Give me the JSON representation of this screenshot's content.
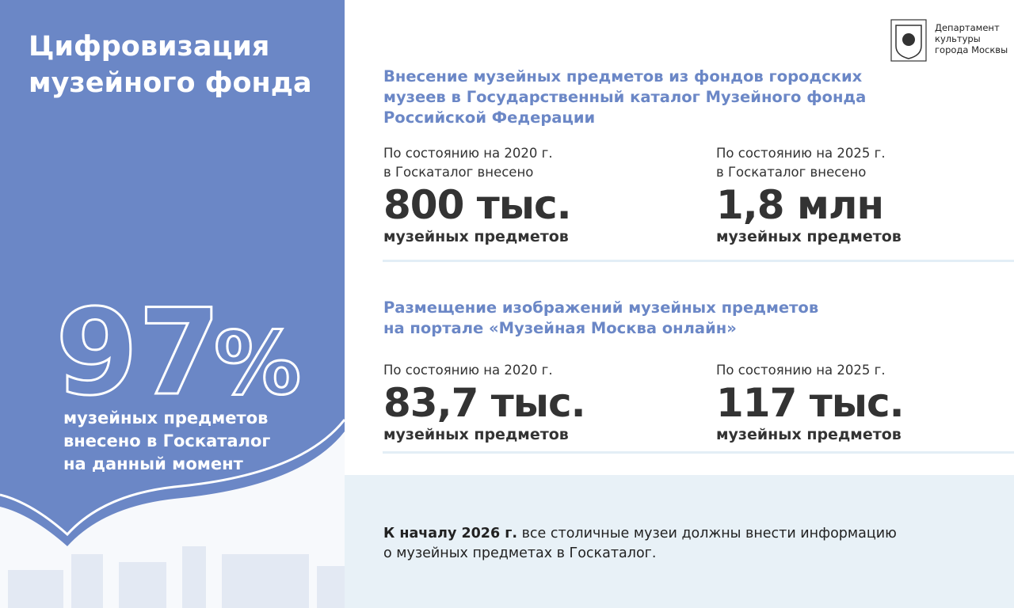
{
  "left": {
    "title": [
      "Цифровизация",
      "музейного фонда"
    ],
    "big_stat": {
      "number": "97",
      "unit": "%"
    },
    "caption": [
      "музейных предметов",
      "внесено в Госкаталог",
      "на данный момент"
    ]
  },
  "logo": {
    "text": [
      "Департамент",
      "культуры",
      "города Москвы"
    ]
  },
  "sections": [
    {
      "heading": [
        "Внесение музейных предметов из фондов городских",
        "музеев в Государственный каталог Музейного фонда",
        "Российской Федерации"
      ],
      "stats": [
        {
          "label": [
            "По состоянию на 2020 г.",
            "в Госкаталог внесено"
          ],
          "value": "800 тыс.",
          "unit": "музейных предметов"
        },
        {
          "label": [
            "По состоянию на 2025 г.",
            "в Госкаталог внесено"
          ],
          "value": "1,8 млн",
          "unit": "музейных предметов"
        }
      ]
    },
    {
      "heading": [
        "Размещение изображений музейных предметов",
        "на портале «Музейная Москва онлайн»"
      ],
      "stats": [
        {
          "label": [
            "По состоянию на 2020 г."
          ],
          "value": "83,7 тыс.",
          "unit": "музейных предметов"
        },
        {
          "label": [
            "По состоянию на 2025 г."
          ],
          "value": "117 тыс.",
          "unit": "музейных предметов"
        }
      ]
    }
  ],
  "note": {
    "bold": "К началу 2026 г.",
    "lines": [
      "все столичные музеи должны внести информацию",
      "о музейных предметах в Госкаталог."
    ]
  }
}
